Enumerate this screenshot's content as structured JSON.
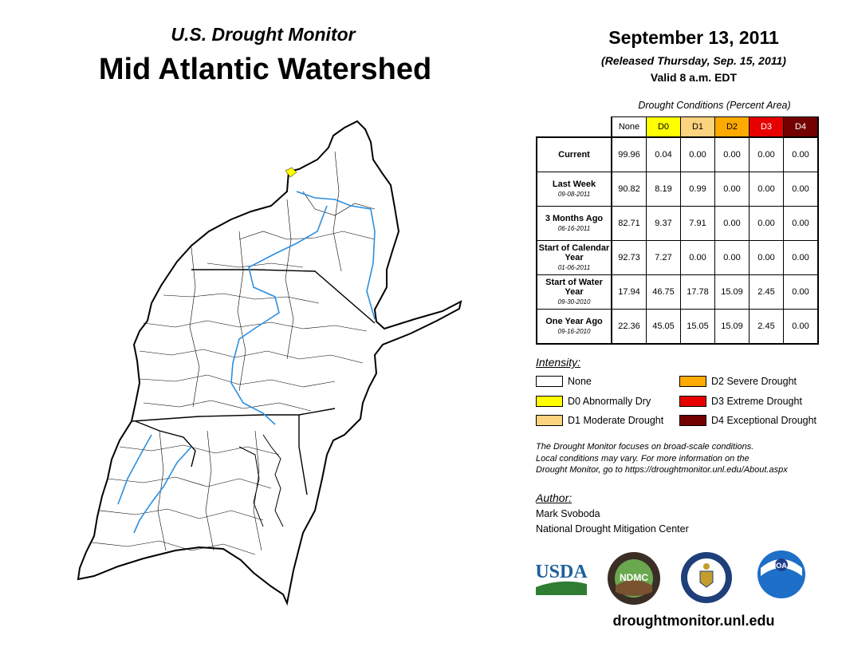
{
  "header": {
    "subtitle": "U.S. Drought Monitor",
    "title": "Mid Atlantic Watershed",
    "date": "September 13, 2011",
    "released": "(Released Thursday, Sep. 15, 2011)",
    "valid": "Valid 8 a.m. EDT"
  },
  "table": {
    "caption": "Drought Conditions (Percent Area)",
    "columns": [
      {
        "label": "None",
        "color": "#ffffff"
      },
      {
        "label": "D0",
        "color": "#ffff00"
      },
      {
        "label": "D1",
        "color": "#fcd37f"
      },
      {
        "label": "D2",
        "color": "#ffaa00"
      },
      {
        "label": "D3",
        "color": "#e60000"
      },
      {
        "label": "D4",
        "color": "#730000"
      }
    ],
    "rows": [
      {
        "label": "Current",
        "date": "",
        "values": [
          "99.96",
          "0.04",
          "0.00",
          "0.00",
          "0.00",
          "0.00"
        ]
      },
      {
        "label": "Last Week",
        "date": "09-08-2011",
        "values": [
          "90.82",
          "8.19",
          "0.99",
          "0.00",
          "0.00",
          "0.00"
        ]
      },
      {
        "label": "3 Months Ago",
        "date": "06-16-2011",
        "values": [
          "82.71",
          "9.37",
          "7.91",
          "0.00",
          "0.00",
          "0.00"
        ]
      },
      {
        "label": "Start of Calendar Year",
        "date": "01-06-2011",
        "values": [
          "92.73",
          "7.27",
          "0.00",
          "0.00",
          "0.00",
          "0.00"
        ]
      },
      {
        "label": "Start of Water Year",
        "date": "09-30-2010",
        "values": [
          "17.94",
          "46.75",
          "17.78",
          "15.09",
          "2.45",
          "0.00"
        ]
      },
      {
        "label": "One Year Ago",
        "date": "09-16-2010",
        "values": [
          "22.36",
          "45.05",
          "15.05",
          "15.09",
          "2.45",
          "0.00"
        ]
      }
    ]
  },
  "legend": {
    "title": "Intensity:",
    "items": [
      {
        "label": "None",
        "color": "#ffffff"
      },
      {
        "label": "D0 Abnormally Dry",
        "color": "#ffff00"
      },
      {
        "label": "D1 Moderate Drought",
        "color": "#fcd37f"
      },
      {
        "label": "D2 Severe Drought",
        "color": "#ffaa00"
      },
      {
        "label": "D3 Extreme Drought",
        "color": "#e60000"
      },
      {
        "label": "D4 Exceptional Drought",
        "color": "#730000"
      }
    ]
  },
  "disclaimer": {
    "line1": "The Drought Monitor focuses on broad-scale conditions.",
    "line2": "Local conditions may vary. For more information on the",
    "line3": "Drought Monitor, go to https://droughtmonitor.unl.edu/About.aspx"
  },
  "author": {
    "label": "Author:",
    "name": "Mark Svoboda",
    "org": "National Drought Mitigation Center"
  },
  "logos": {
    "usda": "USDA",
    "ndmc": "NDMC",
    "noaa": "NOAA"
  },
  "website": "droughtmonitor.unl.edu"
}
